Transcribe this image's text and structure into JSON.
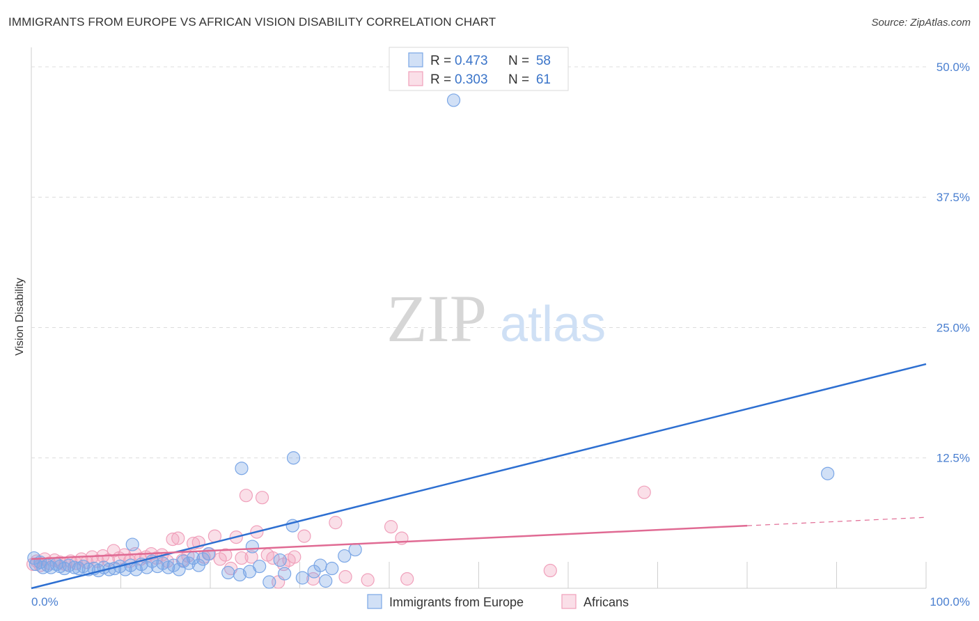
{
  "title": "IMMIGRANTS FROM EUROPE VS AFRICAN VISION DISABILITY CORRELATION CHART",
  "source": "Source: ZipAtlas.com",
  "watermark": {
    "zip": "ZIP",
    "atlas": "atlas"
  },
  "chart_data": {
    "type": "scatter",
    "ylabel": "Vision Disability",
    "xlim": [
      0,
      100
    ],
    "ylim": [
      0,
      50
    ],
    "x_ticks": [
      "0.0%",
      "100.0%"
    ],
    "y_ticks": [
      {
        "value": 12.5,
        "label": "12.5%"
      },
      {
        "value": 25.0,
        "label": "25.0%"
      },
      {
        "value": 37.5,
        "label": "37.5%"
      },
      {
        "value": 50.0,
        "label": "50.0%"
      }
    ],
    "grid": true,
    "legend": {
      "position": "top-center",
      "entries": [
        {
          "r_label": "R =",
          "r_value": "0.473",
          "n_label": "N =",
          "n_value": "58"
        },
        {
          "r_label": "R =",
          "r_value": "0.303",
          "n_label": "N =",
          "n_value": "61"
        }
      ]
    },
    "series": [
      {
        "name": "Immigrants from Europe",
        "color": "#7aa6e6",
        "line_color": "#2d6fd1",
        "trend": {
          "x": [
            0,
            100
          ],
          "y": [
            0.0,
            21.5
          ],
          "dashed_from": null
        },
        "points": [
          [
            0.3,
            2.9
          ],
          [
            0.5,
            2.3
          ],
          [
            1.0,
            2.5
          ],
          [
            1.3,
            2.0
          ],
          [
            1.8,
            2.2
          ],
          [
            2.2,
            2.0
          ],
          [
            2.8,
            2.3
          ],
          [
            3.2,
            2.1
          ],
          [
            3.7,
            1.9
          ],
          [
            4.2,
            2.2
          ],
          [
            4.8,
            2.0
          ],
          [
            5.3,
            1.9
          ],
          [
            5.8,
            2.1
          ],
          [
            6.4,
            1.8
          ],
          [
            7.0,
            1.9
          ],
          [
            7.5,
            1.7
          ],
          [
            8.1,
            2.0
          ],
          [
            8.7,
            1.8
          ],
          [
            9.3,
            1.9
          ],
          [
            9.9,
            2.1
          ],
          [
            10.5,
            1.8
          ],
          [
            11.1,
            2.2
          ],
          [
            11.7,
            1.8
          ],
          [
            12.3,
            2.3
          ],
          [
            12.9,
            2.0
          ],
          [
            13.5,
            2.6
          ],
          [
            14.1,
            2.1
          ],
          [
            14.7,
            2.4
          ],
          [
            15.3,
            2.0
          ],
          [
            15.9,
            2.2
          ],
          [
            16.5,
            1.8
          ],
          [
            17.0,
            2.6
          ],
          [
            17.6,
            2.4
          ],
          [
            18.1,
            2.9
          ],
          [
            18.7,
            2.2
          ],
          [
            19.2,
            2.8
          ],
          [
            19.8,
            3.3
          ],
          [
            22.0,
            1.5
          ],
          [
            23.3,
            1.3
          ],
          [
            24.4,
            1.6
          ],
          [
            24.7,
            4.0
          ],
          [
            25.5,
            2.1
          ],
          [
            26.6,
            0.6
          ],
          [
            27.8,
            2.7
          ],
          [
            28.3,
            1.4
          ],
          [
            29.2,
            6.0
          ],
          [
            30.3,
            1.0
          ],
          [
            31.6,
            1.6
          ],
          [
            32.3,
            2.2
          ],
          [
            32.9,
            0.7
          ],
          [
            33.6,
            1.9
          ],
          [
            35.0,
            3.1
          ],
          [
            36.2,
            3.7
          ],
          [
            23.5,
            11.5
          ],
          [
            29.3,
            12.5
          ],
          [
            11.3,
            4.2
          ],
          [
            47.2,
            46.8
          ],
          [
            89.0,
            11.0
          ]
        ]
      },
      {
        "name": "Africans",
        "color": "#f2a3bc",
        "line_color": "#e06a93",
        "trend": {
          "x": [
            0,
            100
          ],
          "y": [
            2.8,
            6.8
          ],
          "dashed_from": 80
        },
        "points": [
          [
            0.2,
            2.3
          ],
          [
            0.6,
            2.6
          ],
          [
            1.0,
            2.2
          ],
          [
            1.5,
            2.8
          ],
          [
            2.0,
            2.4
          ],
          [
            2.6,
            2.7
          ],
          [
            3.2,
            2.5
          ],
          [
            3.8,
            2.3
          ],
          [
            4.4,
            2.6
          ],
          [
            5.0,
            2.4
          ],
          [
            5.6,
            2.8
          ],
          [
            6.2,
            2.5
          ],
          [
            6.8,
            3.0
          ],
          [
            7.4,
            2.6
          ],
          [
            8.0,
            3.1
          ],
          [
            8.6,
            2.7
          ],
          [
            9.2,
            3.6
          ],
          [
            9.8,
            2.9
          ],
          [
            10.4,
            3.2
          ],
          [
            11.0,
            2.6
          ],
          [
            11.6,
            3.3
          ],
          [
            12.2,
            2.8
          ],
          [
            12.8,
            3.0
          ],
          [
            13.4,
            3.3
          ],
          [
            14.0,
            2.9
          ],
          [
            14.6,
            3.2
          ],
          [
            15.2,
            2.6
          ],
          [
            15.8,
            4.7
          ],
          [
            16.4,
            4.8
          ],
          [
            16.9,
            2.7
          ],
          [
            17.5,
            3.1
          ],
          [
            18.1,
            4.3
          ],
          [
            18.7,
            4.4
          ],
          [
            19.3,
            3.0
          ],
          [
            19.9,
            3.3
          ],
          [
            20.5,
            5.0
          ],
          [
            21.1,
            2.8
          ],
          [
            21.7,
            3.2
          ],
          [
            22.3,
            1.9
          ],
          [
            22.9,
            4.9
          ],
          [
            23.5,
            2.9
          ],
          [
            24.0,
            8.9
          ],
          [
            24.6,
            3.0
          ],
          [
            25.2,
            5.4
          ],
          [
            25.8,
            8.7
          ],
          [
            26.4,
            3.2
          ],
          [
            27.0,
            2.9
          ],
          [
            27.6,
            0.6
          ],
          [
            28.2,
            2.3
          ],
          [
            28.8,
            2.7
          ],
          [
            29.4,
            3.0
          ],
          [
            30.5,
            5.0
          ],
          [
            31.5,
            0.9
          ],
          [
            34.0,
            6.3
          ],
          [
            35.1,
            1.1
          ],
          [
            37.6,
            0.8
          ],
          [
            40.2,
            5.9
          ],
          [
            41.4,
            4.8
          ],
          [
            42.0,
            0.9
          ],
          [
            58.0,
            1.7
          ],
          [
            68.5,
            9.2
          ]
        ]
      }
    ]
  }
}
